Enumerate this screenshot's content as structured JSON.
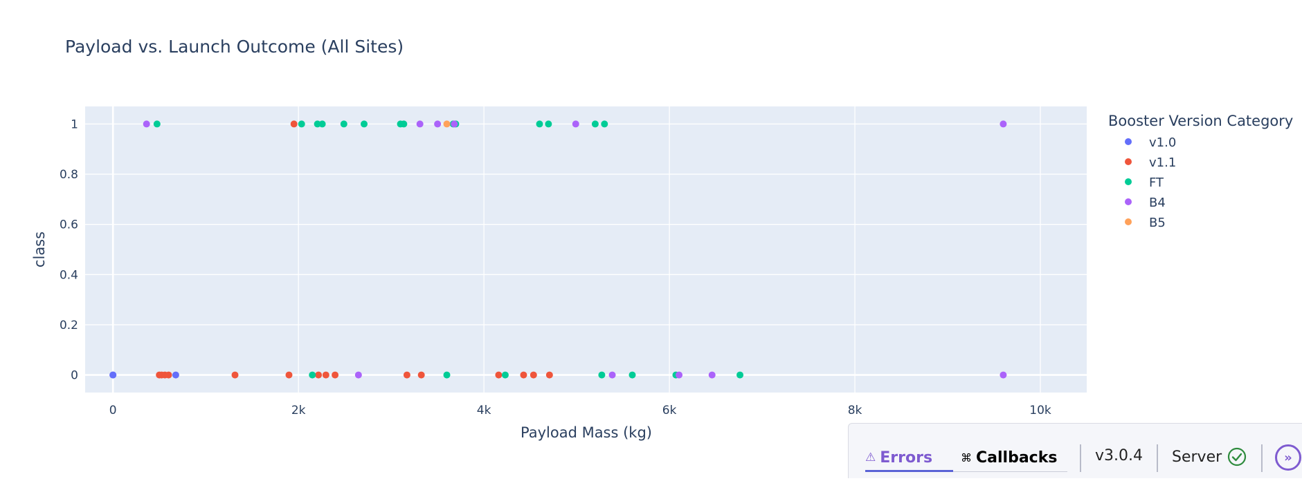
{
  "chart_data": {
    "type": "scatter",
    "title": "Payload vs. Launch Outcome (All Sites)",
    "xlabel": "Payload Mass (kg)",
    "ylabel": "class",
    "xlim": [
      -300,
      10500
    ],
    "ylim": [
      -0.07,
      1.07
    ],
    "x_ticks": [
      0,
      2000,
      4000,
      6000,
      8000,
      10000
    ],
    "x_tick_labels": [
      "0",
      "2k",
      "4k",
      "6k",
      "8k",
      "10k"
    ],
    "y_ticks": [
      0,
      0.2,
      0.4,
      0.6,
      0.8,
      1
    ],
    "y_tick_labels": [
      "0",
      "0.2",
      "0.4",
      "0.6",
      "0.8",
      "1"
    ],
    "grid": true,
    "legend_title": "Booster Version Category",
    "legend_position": "right",
    "series": [
      {
        "name": "v1.0",
        "color": "#636efa",
        "x": [
          0,
          0,
          677
        ],
        "y": [
          0,
          0,
          0
        ]
      },
      {
        "name": "v1.1",
        "color": "#ef553b",
        "x": [
          1952,
          500,
          525,
          560,
          600,
          1316,
          1898,
          2216,
          2296,
          2395,
          3170,
          3325,
          4159,
          4428,
          4535,
          4707
        ],
        "y": [
          1,
          0,
          0,
          0,
          0,
          0,
          0,
          0,
          0,
          0,
          0,
          0,
          0,
          0,
          0,
          0
        ]
      },
      {
        "name": "FT",
        "color": "#00cc96",
        "x": [
          475,
          2034,
          2205,
          2257,
          2490,
          2708,
          3100,
          3136,
          3669,
          3696,
          4600,
          4696,
          5200,
          5300,
          2150,
          3600,
          4230,
          5271,
          5600,
          6070,
          6761
        ],
        "y": [
          1,
          1,
          1,
          1,
          1,
          1,
          1,
          1,
          1,
          1,
          1,
          1,
          1,
          1,
          0,
          0,
          0,
          0,
          0,
          0,
          0
        ]
      },
      {
        "name": "B4",
        "color": "#ab63fa",
        "x": [
          362,
          3310,
          3500,
          3681,
          4990,
          9600,
          2647,
          5384,
          6104,
          6460,
          9600
        ],
        "y": [
          1,
          1,
          1,
          1,
          1,
          1,
          0,
          0,
          0,
          0,
          0
        ]
      },
      {
        "name": "B5",
        "color": "#ffa15a",
        "x": [
          3600
        ],
        "y": [
          1
        ]
      }
    ]
  },
  "toolbar": {
    "errors_label": "Errors",
    "callbacks_label": "Callbacks",
    "version": "v3.0.4",
    "server_label": "Server"
  },
  "colors": {
    "plot_bg": "#e5ecf6",
    "grid": "#ffffff",
    "text": "#2a3f5f",
    "accent": "#7e5bd0",
    "server_ok": "#2e8b3d"
  }
}
